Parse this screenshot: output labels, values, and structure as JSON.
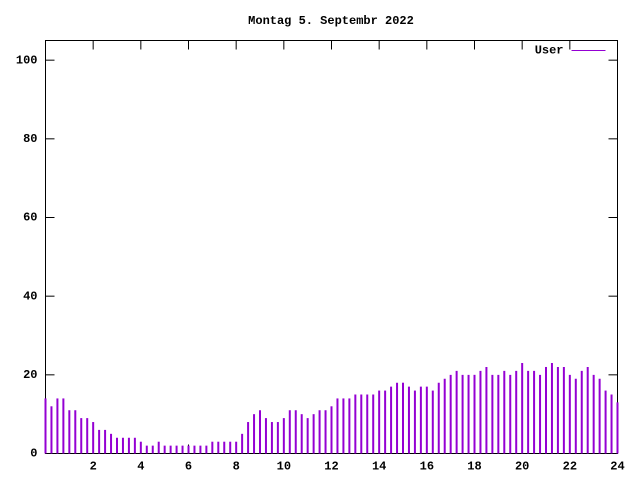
{
  "chart_data": {
    "type": "impulse",
    "title": "Montag 5. Septembr 2022",
    "x": [
      0,
      0.25,
      0.5,
      0.75,
      1,
      1.25,
      1.5,
      1.75,
      2,
      2.25,
      2.5,
      2.75,
      3,
      3.25,
      3.5,
      3.75,
      4,
      4.25,
      4.5,
      4.75,
      5,
      5.25,
      5.5,
      5.75,
      6,
      6.25,
      6.5,
      6.75,
      7,
      7.25,
      7.5,
      7.75,
      8,
      8.25,
      8.5,
      8.75,
      9,
      9.25,
      9.5,
      9.75,
      10,
      10.25,
      10.5,
      10.75,
      11,
      11.25,
      11.5,
      11.75,
      12,
      12.25,
      12.5,
      12.75,
      13,
      13.25,
      13.5,
      13.75,
      14,
      14.25,
      14.5,
      14.75,
      15,
      15.25,
      15.5,
      15.75,
      16,
      16.25,
      16.5,
      16.75,
      17,
      17.25,
      17.5,
      17.75,
      18,
      18.25,
      18.5,
      18.75,
      19,
      19.25,
      19.5,
      19.75,
      20,
      20.25,
      20.5,
      20.75,
      21,
      21.25,
      21.5,
      21.75,
      22,
      22.25,
      22.5,
      22.75,
      23,
      23.25,
      23.5,
      23.75,
      24
    ],
    "series": [
      {
        "name": "User",
        "color": "#9400d3",
        "values": [
          14,
          12,
          14,
          14,
          11,
          11,
          9,
          9,
          8,
          6,
          6,
          5,
          4,
          4,
          4,
          4,
          3,
          2,
          2,
          3,
          2,
          2,
          2,
          2,
          2,
          2,
          2,
          2,
          3,
          3,
          3,
          3,
          3,
          5,
          8,
          10,
          11,
          9,
          8,
          8,
          9,
          11,
          11,
          10,
          9,
          10,
          11,
          11,
          12,
          14,
          14,
          14,
          15,
          15,
          15,
          15,
          16,
          16,
          17,
          18,
          18,
          17,
          16,
          17,
          17,
          16,
          18,
          19,
          20,
          21,
          20,
          20,
          20,
          21,
          22,
          20,
          20,
          21,
          20,
          21,
          23,
          21,
          21,
          20,
          22,
          23,
          22,
          22,
          20,
          19,
          21,
          22,
          20,
          19,
          16,
          15,
          13
        ]
      }
    ],
    "xlim": [
      0,
      24
    ],
    "xticks": [
      2,
      4,
      6,
      8,
      10,
      12,
      14,
      16,
      18,
      20,
      22,
      24
    ],
    "ylim": [
      0,
      105
    ],
    "yticks": [
      0,
      20,
      40,
      60,
      80,
      100
    ],
    "legend": "top-right"
  }
}
